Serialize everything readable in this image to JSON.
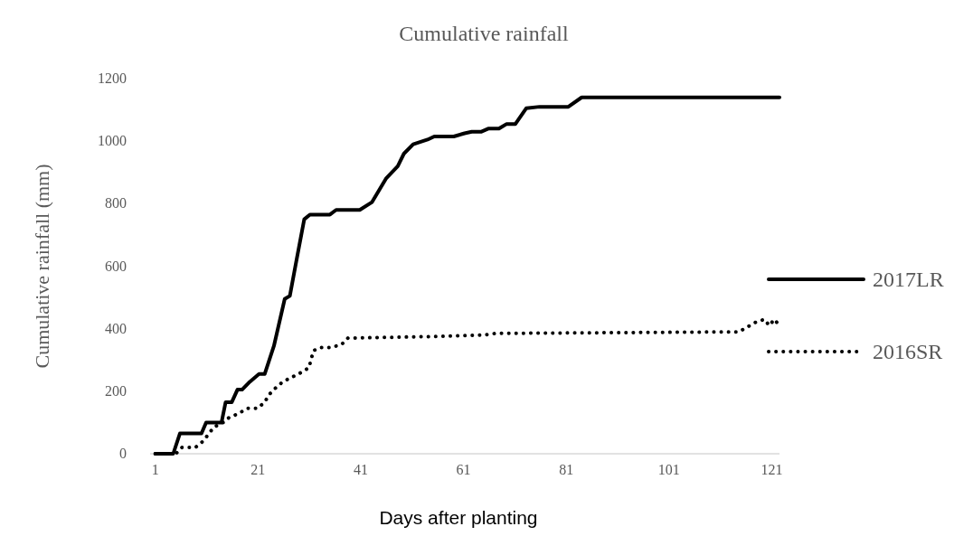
{
  "chart_data": {
    "type": "line",
    "title": "Cumulative rainfall",
    "xlabel": "Days after planting",
    "ylabel": "Cumulative rainfall (mm)",
    "xlim": [
      0,
      122.5
    ],
    "xticks": [
      1,
      21,
      41,
      61,
      81,
      101,
      121
    ],
    "ylim": [
      0,
      1200
    ],
    "yticks": [
      0,
      200,
      400,
      600,
      800,
      1000,
      1200
    ],
    "grid": false,
    "legend": "right",
    "marker": "none",
    "series": [
      {
        "name": "2017LR",
        "color": "#000000",
        "line_style": "solid",
        "x": [
          1,
          4.5,
          5.8,
          10,
          10.9,
          13.9,
          14.7,
          15.9,
          17,
          17.9,
          19.4,
          21.2,
          22.3,
          24.1,
          26.2,
          27.2,
          28.5,
          30,
          31.1,
          35,
          36.2,
          40.8,
          43.2,
          45.9,
          48.2,
          49.4,
          51.2,
          54,
          55.3,
          59.1,
          61.2,
          62.6,
          64.4,
          65.8,
          67.9,
          69.4,
          71.1,
          73.2,
          75.8,
          81.4,
          84,
          122.5
        ],
        "values": [
          0,
          0,
          65,
          65,
          100,
          100,
          165,
          165,
          205,
          205,
          230,
          255,
          255,
          345,
          495,
          505,
          620,
          750,
          765,
          765,
          780,
          780,
          805,
          880,
          920,
          960,
          990,
          1005,
          1015,
          1015,
          1025,
          1030,
          1030,
          1040,
          1040,
          1055,
          1055,
          1105,
          1110,
          1110,
          1140,
          1140
        ]
      },
      {
        "name": "2016SR",
        "color": "#000000",
        "line_style": "dotted",
        "x": [
          1,
          5,
          6.2,
          8.8,
          10.3,
          12.4,
          14.2,
          15.3,
          17.4,
          18.8,
          20.9,
          22.3,
          23.2,
          24.4,
          25.8,
          27.6,
          29.4,
          30.9,
          31.8,
          33.2,
          35.3,
          37.3,
          38.5,
          55.3,
          65,
          67.3,
          114.6,
          117.8,
          119.6,
          120.5,
          121.5,
          122.5
        ],
        "values": [
          0,
          0,
          20,
          20,
          40,
          85,
          100,
          115,
          130,
          145,
          145,
          165,
          190,
          210,
          230,
          245,
          260,
          275,
          330,
          340,
          340,
          350,
          370,
          375,
          380,
          385,
          390,
          420,
          430,
          410,
          430,
          410
        ]
      }
    ]
  }
}
